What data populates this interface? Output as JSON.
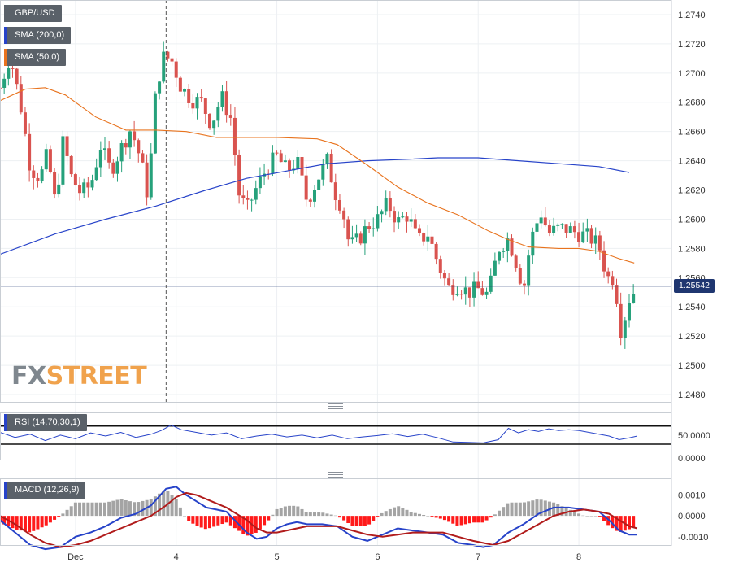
{
  "chart_data": [
    {
      "type": "candlestick",
      "pair_label": "GBP/USD",
      "x_ticks": [
        {
          "label": "Dec",
          "day": 0.0
        },
        {
          "label": "4",
          "day": 1.0
        },
        {
          "label": "5",
          "day": 2.0
        },
        {
          "label": "6",
          "day": 3.0
        },
        {
          "label": "7",
          "day": 4.0
        },
        {
          "label": "8",
          "day": 5.0
        }
      ],
      "x_range": [
        -0.75,
        5.92
      ],
      "ylim": [
        1.2475,
        1.275
      ],
      "y_ticks": [
        "1.2740",
        "1.2720",
        "1.2700",
        "1.2680",
        "1.2660",
        "1.2640",
        "1.2620",
        "1.2600",
        "1.2580",
        "1.2560",
        "1.2540",
        "1.2520",
        "1.2500",
        "1.2480"
      ],
      "current_price_label": "1.25542",
      "current_price": 1.25542,
      "vertical_marker_day": 0.9,
      "sma_200": {
        "name": "SMA (200,0)",
        "color": "#2743c9",
        "points": [
          [
            -0.75,
            1.2576
          ],
          [
            -0.2,
            1.259
          ],
          [
            0.3,
            1.26
          ],
          [
            0.8,
            1.2609
          ],
          [
            1.3,
            1.262
          ],
          [
            1.7,
            1.2628
          ],
          [
            2.1,
            1.2633
          ],
          [
            2.5,
            1.2638
          ],
          [
            2.9,
            1.264
          ],
          [
            3.3,
            1.2641
          ],
          [
            3.6,
            1.2642
          ],
          [
            4.0,
            1.2642
          ],
          [
            4.4,
            1.264
          ],
          [
            4.8,
            1.2638
          ],
          [
            5.2,
            1.2636
          ],
          [
            5.5,
            1.2632
          ]
        ]
      },
      "sma_50": {
        "name": "SMA (50,0)",
        "color": "#e8731e",
        "points": [
          [
            -0.75,
            1.2681
          ],
          [
            -0.5,
            1.2689
          ],
          [
            -0.3,
            1.269
          ],
          [
            -0.1,
            1.2685
          ],
          [
            0.2,
            1.267
          ],
          [
            0.5,
            1.2661
          ],
          [
            0.8,
            1.2661
          ],
          [
            1.1,
            1.266
          ],
          [
            1.4,
            1.2656
          ],
          [
            1.6,
            1.2656
          ],
          [
            2.0,
            1.2656
          ],
          [
            2.4,
            1.2655
          ],
          [
            2.6,
            1.2651
          ],
          [
            2.9,
            1.2637
          ],
          [
            3.2,
            1.2622
          ],
          [
            3.5,
            1.2611
          ],
          [
            3.8,
            1.2603
          ],
          [
            4.1,
            1.2592
          ],
          [
            4.3,
            1.2586
          ],
          [
            4.5,
            1.2581
          ],
          [
            4.8,
            1.258
          ],
          [
            5.0,
            1.258
          ],
          [
            5.2,
            1.2578
          ],
          [
            5.4,
            1.2573
          ],
          [
            5.55,
            1.257
          ]
        ]
      },
      "ohlc_anchors": [
        [
          -0.75,
          1.269
        ],
        [
          -0.65,
          1.2712
        ],
        [
          -0.55,
          1.268
        ],
        [
          -0.45,
          1.2635
        ],
        [
          -0.35,
          1.2628
        ],
        [
          -0.28,
          1.2645
        ],
        [
          -0.2,
          1.261
        ],
        [
          -0.12,
          1.2655
        ],
        [
          -0.05,
          1.263
        ],
        [
          0.05,
          1.2618
        ],
        [
          0.15,
          1.2623
        ],
        [
          0.25,
          1.265
        ],
        [
          0.35,
          1.2633
        ],
        [
          0.45,
          1.2648
        ],
        [
          0.55,
          1.2662
        ],
        [
          0.65,
          1.264
        ],
        [
          0.72,
          1.2615
        ],
        [
          0.8,
          1.269
        ],
        [
          0.88,
          1.2712
        ],
        [
          0.96,
          1.2708
        ],
        [
          1.05,
          1.269
        ],
        [
          1.15,
          1.2682
        ],
        [
          1.25,
          1.268
        ],
        [
          1.35,
          1.2665
        ],
        [
          1.45,
          1.2684
        ],
        [
          1.55,
          1.2668
        ],
        [
          1.62,
          1.2618
        ],
        [
          1.7,
          1.2606
        ],
        [
          1.8,
          1.2622
        ],
        [
          1.9,
          1.2635
        ],
        [
          2.0,
          1.2643
        ],
        [
          2.1,
          1.2633
        ],
        [
          2.2,
          1.264
        ],
        [
          2.3,
          1.2612
        ],
        [
          2.4,
          1.2627
        ],
        [
          2.5,
          1.264
        ],
        [
          2.58,
          1.2618
        ],
        [
          2.65,
          1.2608
        ],
        [
          2.72,
          1.2582
        ],
        [
          2.8,
          1.2585
        ],
        [
          2.9,
          1.2595
        ],
        [
          3.0,
          1.26
        ],
        [
          3.1,
          1.2611
        ],
        [
          3.2,
          1.2598
        ],
        [
          3.3,
          1.2603
        ],
        [
          3.4,
          1.2585
        ],
        [
          3.5,
          1.259
        ],
        [
          3.6,
          1.257
        ],
        [
          3.7,
          1.2553
        ],
        [
          3.8,
          1.2555
        ],
        [
          3.9,
          1.255
        ],
        [
          4.0,
          1.2552
        ],
        [
          4.1,
          1.2548
        ],
        [
          4.2,
          1.258
        ],
        [
          4.3,
          1.2587
        ],
        [
          4.38,
          1.257
        ],
        [
          4.45,
          1.2552
        ],
        [
          4.52,
          1.2585
        ],
        [
          4.62,
          1.2605
        ],
        [
          4.7,
          1.259
        ],
        [
          4.8,
          1.2594
        ],
        [
          4.9,
          1.2593
        ],
        [
          5.0,
          1.259
        ],
        [
          5.1,
          1.2588
        ],
        [
          5.2,
          1.2582
        ],
        [
          5.28,
          1.256
        ],
        [
          5.35,
          1.256
        ],
        [
          5.42,
          1.2523
        ],
        [
          5.5,
          1.2546
        ],
        [
          5.58,
          1.2554
        ]
      ]
    },
    {
      "type": "line",
      "label": "RSI (14,70,30,1)",
      "color": "#2743c9",
      "ylim": [
        -4,
        100
      ],
      "y_ticks": [
        "50.0000",
        "0.0000"
      ],
      "levels": [
        70,
        30
      ],
      "points": [
        [
          -0.75,
          56
        ],
        [
          -0.6,
          45
        ],
        [
          -0.45,
          52
        ],
        [
          -0.3,
          38
        ],
        [
          -0.15,
          50
        ],
        [
          0.0,
          42
        ],
        [
          0.15,
          55
        ],
        [
          0.3,
          48
        ],
        [
          0.45,
          56
        ],
        [
          0.6,
          45
        ],
        [
          0.75,
          52
        ],
        [
          0.85,
          60
        ],
        [
          0.95,
          72
        ],
        [
          1.05,
          62
        ],
        [
          1.2,
          56
        ],
        [
          1.35,
          50
        ],
        [
          1.5,
          55
        ],
        [
          1.65,
          42
        ],
        [
          1.8,
          48
        ],
        [
          1.95,
          52
        ],
        [
          2.1,
          46
        ],
        [
          2.25,
          50
        ],
        [
          2.4,
          44
        ],
        [
          2.55,
          50
        ],
        [
          2.7,
          42
        ],
        [
          2.85,
          46
        ],
        [
          3.0,
          49
        ],
        [
          3.15,
          53
        ],
        [
          3.3,
          47
        ],
        [
          3.45,
          52
        ],
        [
          3.6,
          44
        ],
        [
          3.75,
          35
        ],
        [
          3.9,
          34
        ],
        [
          4.05,
          33
        ],
        [
          4.2,
          40
        ],
        [
          4.3,
          65
        ],
        [
          4.4,
          55
        ],
        [
          4.5,
          62
        ],
        [
          4.6,
          58
        ],
        [
          4.7,
          64
        ],
        [
          4.8,
          60
        ],
        [
          4.9,
          62
        ],
        [
          5.0,
          60
        ],
        [
          5.1,
          56
        ],
        [
          5.2,
          52
        ],
        [
          5.3,
          48
        ],
        [
          5.4,
          40
        ],
        [
          5.5,
          44
        ],
        [
          5.58,
          48
        ]
      ]
    },
    {
      "type": "macd",
      "label": "MACD (12,26,9)",
      "ylim": [
        -0.0014,
        0.0018
      ],
      "y_ticks": [
        "0.0010",
        "0.0000",
        "-0.0010"
      ],
      "macd_color": "#2743c9",
      "signal_color": "#b11c1c",
      "macd_line": [
        [
          -0.75,
          -0.0002
        ],
        [
          -0.6,
          -0.0008
        ],
        [
          -0.45,
          -0.0014
        ],
        [
          -0.3,
          -0.0016
        ],
        [
          -0.15,
          -0.0015
        ],
        [
          0.0,
          -0.001
        ],
        [
          0.15,
          -0.0008
        ],
        [
          0.3,
          -0.0005
        ],
        [
          0.45,
          -0.0001
        ],
        [
          0.6,
          0.0001
        ],
        [
          0.75,
          0.0005
        ],
        [
          0.9,
          0.0013
        ],
        [
          1.0,
          0.0014
        ],
        [
          1.1,
          0.001
        ],
        [
          1.2,
          0.0007
        ],
        [
          1.3,
          0.0004
        ],
        [
          1.4,
          0.0003
        ],
        [
          1.5,
          0.0002
        ],
        [
          1.6,
          -0.0003
        ],
        [
          1.7,
          -0.0008
        ],
        [
          1.8,
          -0.0011
        ],
        [
          1.9,
          -0.001
        ],
        [
          2.0,
          -0.0006
        ],
        [
          2.1,
          -0.0004
        ],
        [
          2.2,
          -0.0003
        ],
        [
          2.3,
          -0.0004
        ],
        [
          2.45,
          -0.0004
        ],
        [
          2.6,
          -0.0005
        ],
        [
          2.75,
          -0.001
        ],
        [
          2.9,
          -0.0012
        ],
        [
          3.05,
          -0.0009
        ],
        [
          3.2,
          -0.0006
        ],
        [
          3.35,
          -0.0007
        ],
        [
          3.5,
          -0.0008
        ],
        [
          3.65,
          -0.0009
        ],
        [
          3.8,
          -0.0013
        ],
        [
          3.95,
          -0.0014
        ],
        [
          4.05,
          -0.0015
        ],
        [
          4.15,
          -0.0014
        ],
        [
          4.3,
          -0.0008
        ],
        [
          4.45,
          -0.0004
        ],
        [
          4.6,
          0.0001
        ],
        [
          4.75,
          0.0004
        ],
        [
          4.9,
          0.0004
        ],
        [
          5.05,
          0.0003
        ],
        [
          5.2,
          0.0002
        ],
        [
          5.3,
          -0.0002
        ],
        [
          5.4,
          -0.0007
        ],
        [
          5.5,
          -0.0009
        ],
        [
          5.58,
          -0.0009
        ]
      ],
      "signal_line": [
        [
          -0.75,
          0.0
        ],
        [
          -0.6,
          -0.0004
        ],
        [
          -0.45,
          -0.0009
        ],
        [
          -0.3,
          -0.0013
        ],
        [
          -0.15,
          -0.0015
        ],
        [
          0.0,
          -0.0014
        ],
        [
          0.15,
          -0.0012
        ],
        [
          0.3,
          -0.0009
        ],
        [
          0.45,
          -0.0006
        ],
        [
          0.6,
          -0.0003
        ],
        [
          0.75,
          0.0
        ],
        [
          0.9,
          0.0005
        ],
        [
          1.0,
          0.0009
        ],
        [
          1.1,
          0.0011
        ],
        [
          1.2,
          0.001
        ],
        [
          1.3,
          0.0008
        ],
        [
          1.4,
          0.0006
        ],
        [
          1.5,
          0.0004
        ],
        [
          1.6,
          0.0001
        ],
        [
          1.7,
          -0.0002
        ],
        [
          1.8,
          -0.0006
        ],
        [
          1.9,
          -0.0008
        ],
        [
          2.0,
          -0.0008
        ],
        [
          2.1,
          -0.0007
        ],
        [
          2.2,
          -0.0006
        ],
        [
          2.3,
          -0.0005
        ],
        [
          2.45,
          -0.0005
        ],
        [
          2.6,
          -0.0005
        ],
        [
          2.75,
          -0.0007
        ],
        [
          2.9,
          -0.0009
        ],
        [
          3.05,
          -0.001
        ],
        [
          3.2,
          -0.0009
        ],
        [
          3.35,
          -0.0008
        ],
        [
          3.5,
          -0.0008
        ],
        [
          3.65,
          -0.0008
        ],
        [
          3.8,
          -0.001
        ],
        [
          3.95,
          -0.0012
        ],
        [
          4.05,
          -0.0013
        ],
        [
          4.15,
          -0.0014
        ],
        [
          4.3,
          -0.0012
        ],
        [
          4.45,
          -0.0008
        ],
        [
          4.6,
          -0.0004
        ],
        [
          4.75,
          0.0
        ],
        [
          4.9,
          0.0002
        ],
        [
          5.05,
          0.0003
        ],
        [
          5.2,
          0.0002
        ],
        [
          5.3,
          0.0001
        ],
        [
          5.4,
          -0.0002
        ],
        [
          5.5,
          -0.0005
        ],
        [
          5.58,
          -0.0006
        ]
      ]
    }
  ]
}
